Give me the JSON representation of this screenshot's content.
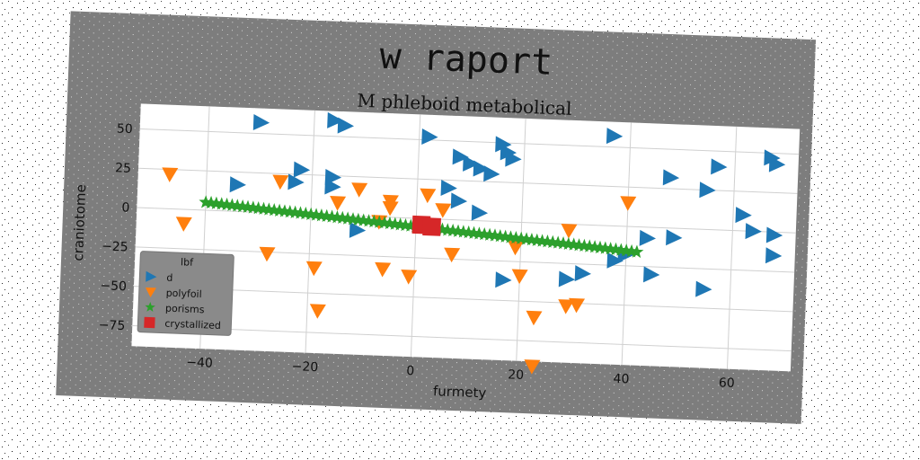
{
  "chart_data": {
    "type": "scatter",
    "title": "w raport",
    "subtitle": "M phleboid metabolical",
    "xlabel": "furmety",
    "ylabel": "craniotome",
    "xlim": [
      -53,
      72
    ],
    "ylim": [
      -88,
      66
    ],
    "xticks": [
      -40,
      -20,
      0,
      20,
      40,
      60
    ],
    "yticks": [
      50,
      25,
      0,
      -25,
      -50,
      -75
    ],
    "grid": true,
    "legend": {
      "title": "lbf",
      "placement": "lower-left"
    },
    "series": [
      {
        "name": "d",
        "marker": "triangle-right",
        "color": "#1f77b4",
        "points": [
          [
            -30,
            57
          ],
          [
            -16,
            60
          ],
          [
            -14,
            57
          ],
          [
            -22,
            28
          ],
          [
            -23,
            20
          ],
          [
            -16,
            24
          ],
          [
            -16,
            18
          ],
          [
            -34,
            17
          ],
          [
            -11,
            -9
          ],
          [
            2,
            52
          ],
          [
            8,
            40
          ],
          [
            10,
            36
          ],
          [
            12,
            33
          ],
          [
            14,
            30
          ],
          [
            6,
            20
          ],
          [
            8,
            12
          ],
          [
            12,
            5
          ],
          [
            16,
            49
          ],
          [
            17,
            44
          ],
          [
            18,
            40
          ],
          [
            37,
            57
          ],
          [
            48,
            32
          ],
          [
            57,
            40
          ],
          [
            55,
            25
          ],
          [
            62,
            10
          ],
          [
            64,
            0
          ],
          [
            68,
            -2
          ],
          [
            68,
            -15
          ],
          [
            67,
            47
          ],
          [
            68,
            43
          ],
          [
            44,
            -7
          ],
          [
            49,
            -6
          ],
          [
            45,
            -30
          ],
          [
            55,
            -38
          ],
          [
            38,
            -22
          ],
          [
            40,
            -18
          ],
          [
            17,
            -37
          ],
          [
            29,
            -35
          ],
          [
            32,
            -31
          ]
        ]
      },
      {
        "name": "polyfoil",
        "marker": "triangle-down",
        "color": "#ff7f0e",
        "points": [
          [
            -47,
            22
          ],
          [
            -44,
            -9
          ],
          [
            -28,
            -26
          ],
          [
            -26,
            20
          ],
          [
            -19,
            -34
          ],
          [
            -18,
            -61
          ],
          [
            -15,
            8
          ],
          [
            -11,
            17
          ],
          [
            -7,
            -3
          ],
          [
            -5,
            10
          ],
          [
            -5,
            6
          ],
          [
            -6,
            -33
          ],
          [
            -1,
            -37
          ],
          [
            2,
            15
          ],
          [
            5,
            6
          ],
          [
            7,
            -22
          ],
          [
            19,
            -16
          ],
          [
            20,
            -34
          ],
          [
            23,
            -60
          ],
          [
            23,
            -91
          ],
          [
            29,
            -4
          ],
          [
            29,
            -52
          ],
          [
            31,
            -51
          ],
          [
            40,
            15
          ]
        ]
      },
      {
        "name": "porisms",
        "marker": "star",
        "color": "#2ca02c",
        "line": {
          "x_start": -40,
          "x_end": 42,
          "y_start": 5,
          "y_end": -16,
          "count": 83
        }
      },
      {
        "name": "crystallized",
        "marker": "square",
        "color": "#d62728",
        "points": [
          [
            1,
            -4
          ],
          [
            3,
            -5
          ]
        ]
      }
    ]
  }
}
